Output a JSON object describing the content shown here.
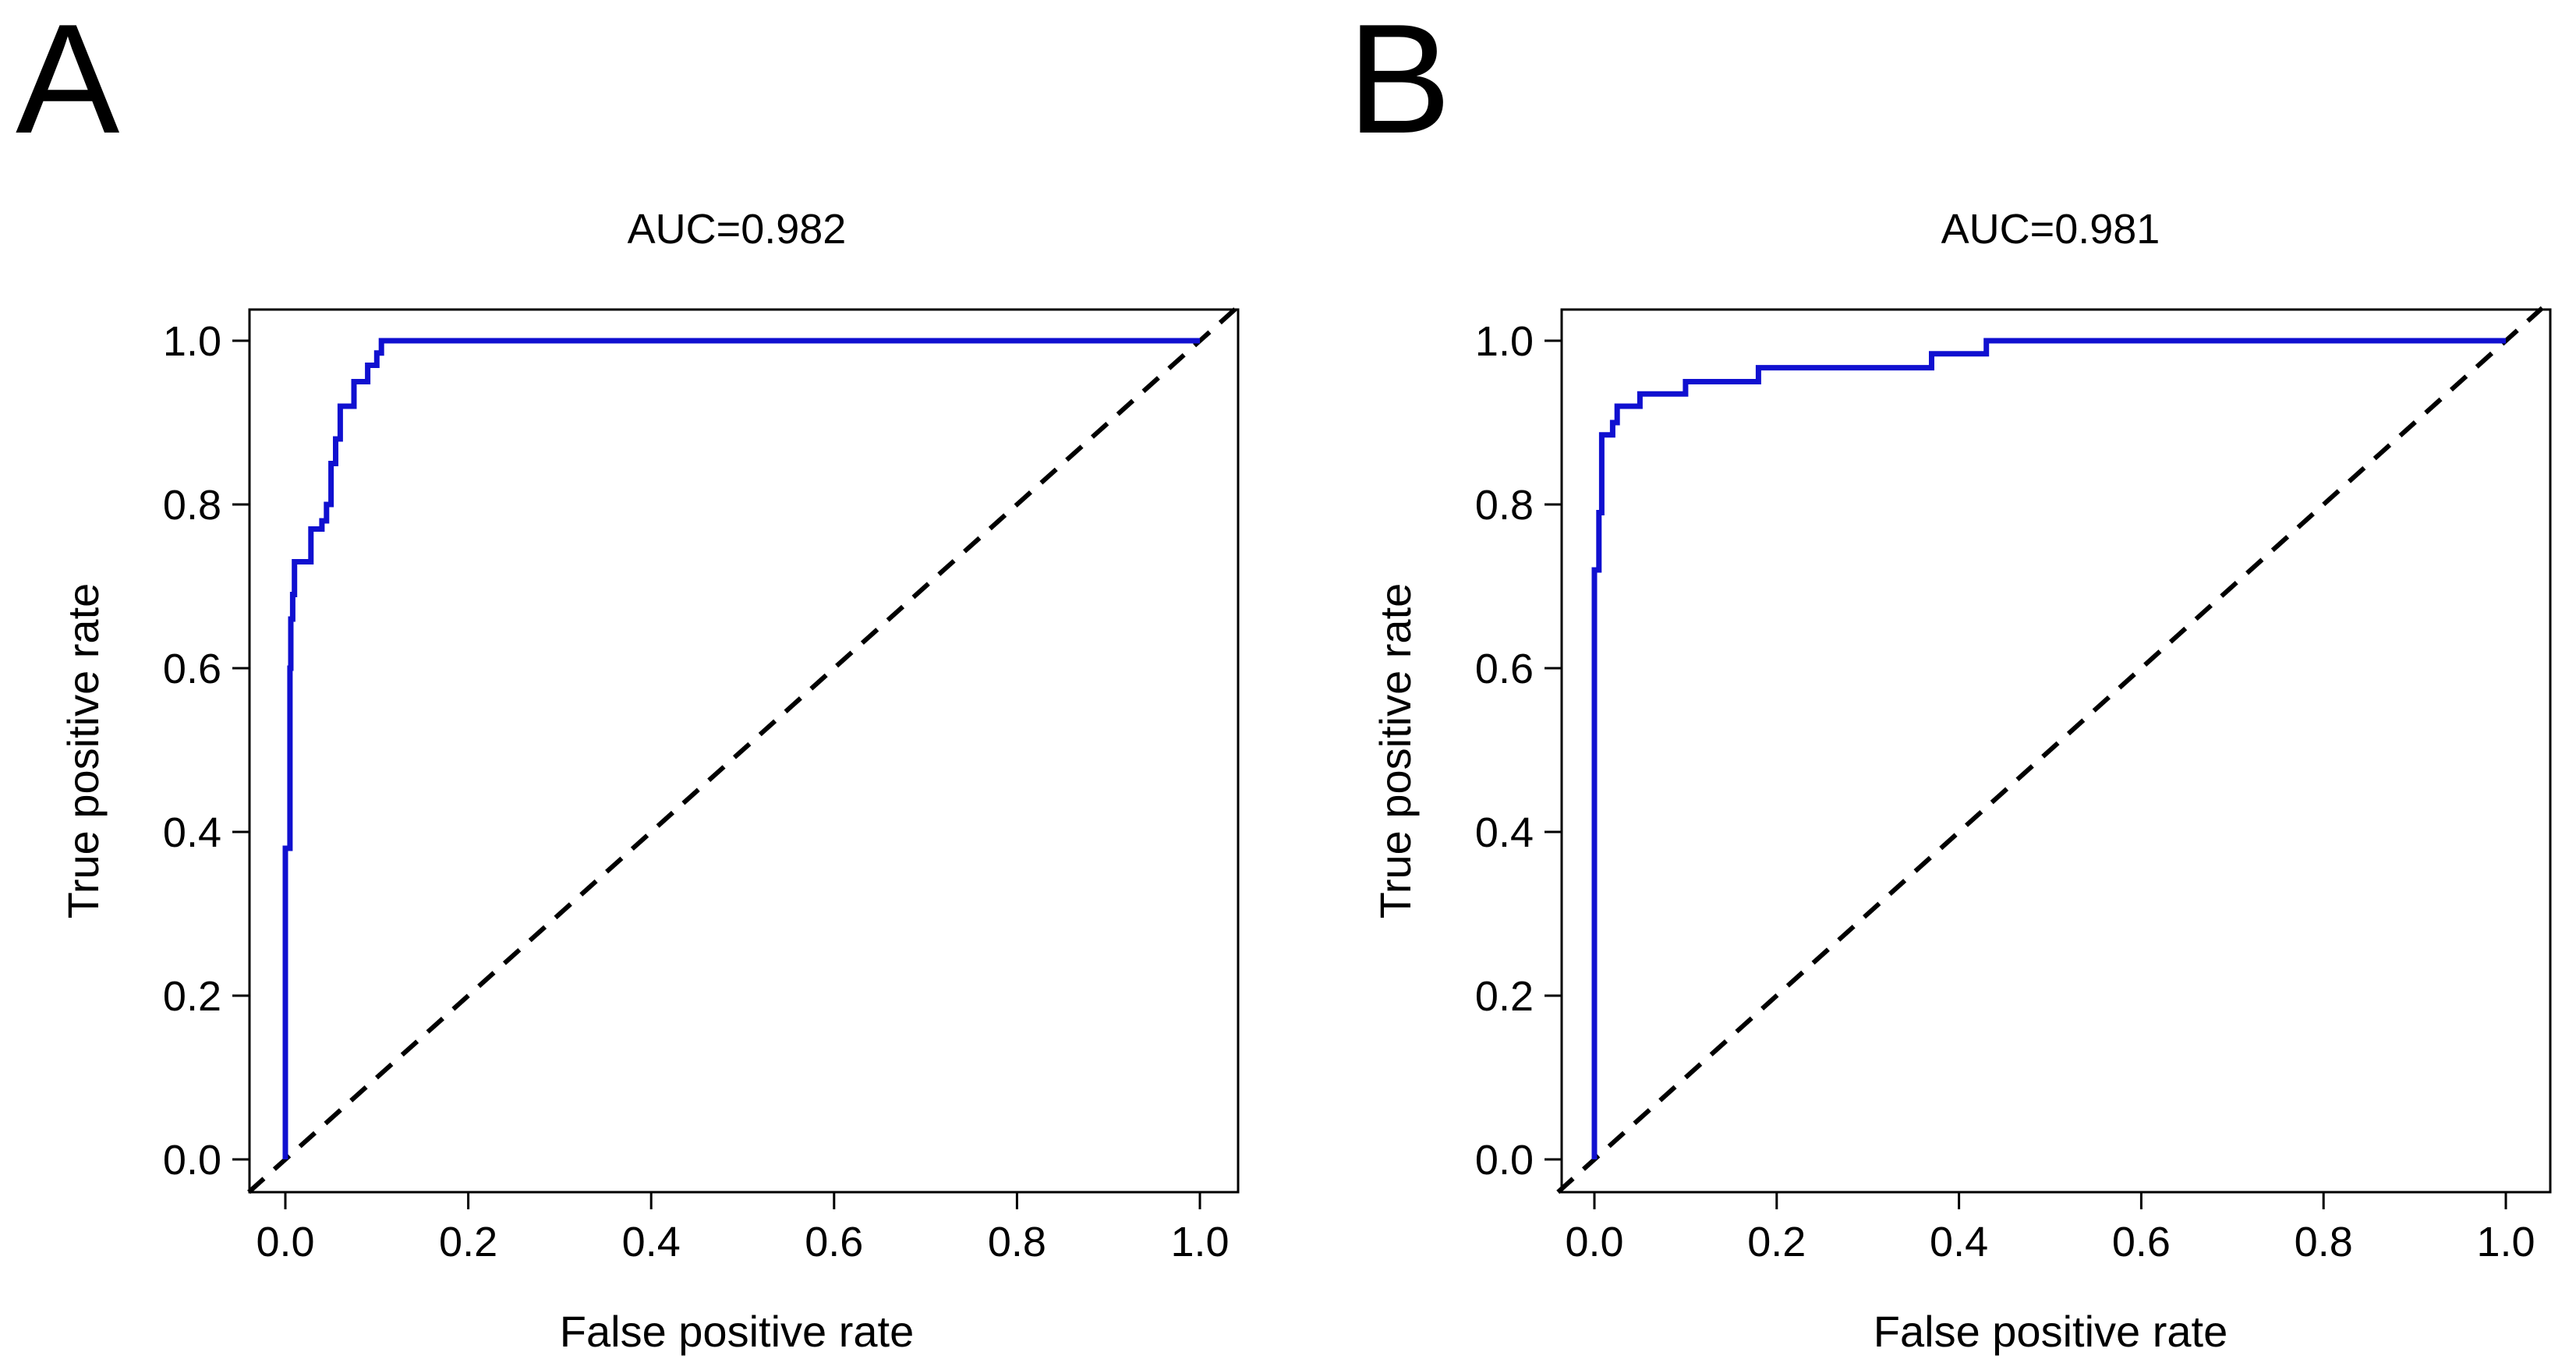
{
  "chart_data": [
    {
      "type": "line",
      "panel": "A",
      "title": "AUC=0.982",
      "xlabel": "False positive rate",
      "ylabel": "True positive rate",
      "xlim": [
        0,
        1
      ],
      "ylim": [
        0,
        1
      ],
      "xticks": [
        "0.0",
        "0.2",
        "0.4",
        "0.6",
        "0.8",
        "1.0"
      ],
      "yticks": [
        "0.0",
        "0.2",
        "0.4",
        "0.6",
        "0.8",
        "1.0"
      ],
      "grid": false,
      "reference_line": "diagonal dashed",
      "colors": {
        "roc": "#1010d0",
        "reference": "#000000"
      },
      "series": [
        {
          "x": [
            0,
            0,
            0.005,
            0.005,
            0.006,
            0.006,
            0.008,
            0.008,
            0.01,
            0.01,
            0.028,
            0.028,
            0.04,
            0.04,
            0.045,
            0.045,
            0.05,
            0.05,
            0.055,
            0.055,
            0.06,
            0.06,
            0.075,
            0.075,
            0.09,
            0.09,
            0.1,
            0.1,
            0.105,
            0.105,
            1.0
          ],
          "y": [
            0,
            0.38,
            0.38,
            0.6,
            0.6,
            0.66,
            0.66,
            0.69,
            0.69,
            0.73,
            0.73,
            0.77,
            0.77,
            0.78,
            0.78,
            0.8,
            0.8,
            0.85,
            0.85,
            0.88,
            0.88,
            0.92,
            0.92,
            0.95,
            0.95,
            0.97,
            0.97,
            0.985,
            0.985,
            1.0,
            1.0
          ]
        }
      ]
    },
    {
      "type": "line",
      "panel": "B",
      "title": "AUC=0.981",
      "xlabel": "False positive rate",
      "ylabel": "True positive rate",
      "xlim": [
        0,
        1
      ],
      "ylim": [
        0,
        1
      ],
      "xticks": [
        "0.0",
        "0.2",
        "0.4",
        "0.6",
        "0.8",
        "1.0"
      ],
      "yticks": [
        "0.0",
        "0.2",
        "0.4",
        "0.6",
        "0.8",
        "1.0"
      ],
      "grid": false,
      "reference_line": "diagonal dashed",
      "colors": {
        "roc": "#1010d0",
        "reference": "#000000"
      },
      "series": [
        {
          "x": [
            0,
            0,
            0.005,
            0.005,
            0.008,
            0.008,
            0.02,
            0.02,
            0.025,
            0.025,
            0.05,
            0.05,
            0.1,
            0.1,
            0.18,
            0.18,
            0.37,
            0.37,
            0.43,
            0.43,
            1.0
          ],
          "y": [
            0,
            0.72,
            0.72,
            0.79,
            0.79,
            0.885,
            0.885,
            0.9,
            0.9,
            0.92,
            0.92,
            0.935,
            0.935,
            0.95,
            0.95,
            0.967,
            0.967,
            0.984,
            0.984,
            1.0,
            1.0
          ]
        }
      ]
    }
  ]
}
